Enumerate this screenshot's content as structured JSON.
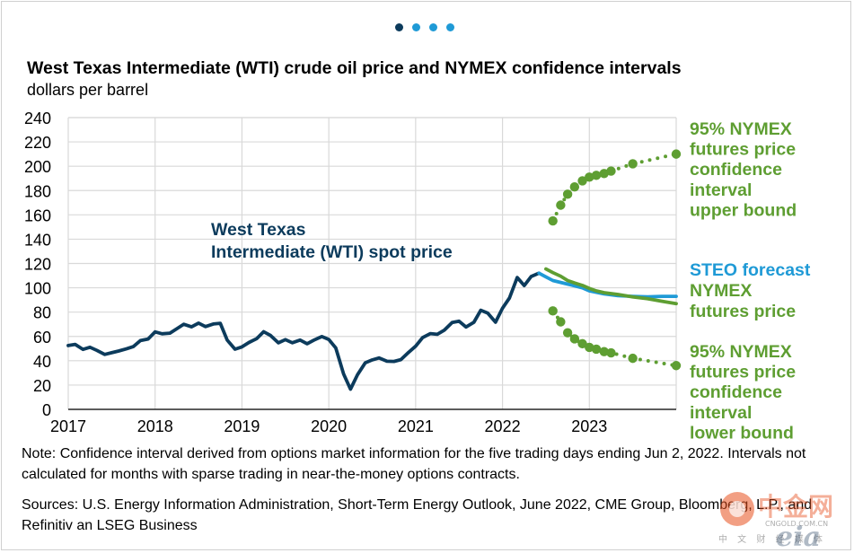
{
  "header": {
    "title": "West Texas Intermediate (WTI) crude oil price and NYMEX confidence intervals",
    "subtitle": "dollars per barrel",
    "dot_colors": [
      "#0c3b5c",
      "#1f9ad6",
      "#1f9ad6",
      "#1f9ad6"
    ]
  },
  "colors": {
    "wti": "#0c3b5c",
    "steo": "#1f9ad6",
    "nymex": "#5e9e32",
    "grid": "#d9d9d9"
  },
  "chart_data": {
    "type": "line",
    "title": "West Texas Intermediate (WTI) crude oil price and NYMEX confidence intervals",
    "ylabel": "dollars per barrel",
    "xlabel": "",
    "x_range": [
      2017.0,
      2024.0
    ],
    "ylim": [
      0,
      240
    ],
    "y_ticks": [
      0,
      20,
      40,
      60,
      80,
      100,
      120,
      140,
      160,
      180,
      200,
      220,
      240
    ],
    "x_ticks": [
      2017,
      2018,
      2019,
      2020,
      2021,
      2022,
      2023
    ],
    "x_tick_labels": [
      "2017",
      "2018",
      "2019",
      "2020",
      "2021",
      "2022",
      "2023"
    ],
    "grid": true,
    "series": [
      {
        "name": "West Texas Intermediate (WTI) spot price",
        "style": "line",
        "points": [
          [
            2017.0,
            52.5
          ],
          [
            2017.08,
            53.5
          ],
          [
            2017.17,
            49.3
          ],
          [
            2017.25,
            51.1
          ],
          [
            2017.33,
            48.5
          ],
          [
            2017.42,
            45.2
          ],
          [
            2017.5,
            46.6
          ],
          [
            2017.58,
            48.0
          ],
          [
            2017.67,
            49.8
          ],
          [
            2017.75,
            51.6
          ],
          [
            2017.83,
            56.6
          ],
          [
            2017.92,
            57.9
          ],
          [
            2018.0,
            63.7
          ],
          [
            2018.08,
            62.2
          ],
          [
            2018.17,
            62.7
          ],
          [
            2018.25,
            66.3
          ],
          [
            2018.33,
            70.0
          ],
          [
            2018.42,
            67.9
          ],
          [
            2018.5,
            71.0
          ],
          [
            2018.58,
            68.1
          ],
          [
            2018.67,
            70.2
          ],
          [
            2018.75,
            70.8
          ],
          [
            2018.83,
            57.0
          ],
          [
            2018.92,
            49.5
          ],
          [
            2019.0,
            51.4
          ],
          [
            2019.08,
            55.0
          ],
          [
            2019.17,
            58.2
          ],
          [
            2019.25,
            63.9
          ],
          [
            2019.33,
            60.8
          ],
          [
            2019.42,
            54.7
          ],
          [
            2019.5,
            57.4
          ],
          [
            2019.58,
            54.8
          ],
          [
            2019.67,
            57.0
          ],
          [
            2019.75,
            54.0
          ],
          [
            2019.83,
            57.0
          ],
          [
            2019.92,
            59.9
          ],
          [
            2020.0,
            57.5
          ],
          [
            2020.08,
            50.5
          ],
          [
            2020.17,
            29.2
          ],
          [
            2020.25,
            16.6
          ],
          [
            2020.33,
            28.5
          ],
          [
            2020.42,
            38.3
          ],
          [
            2020.5,
            40.7
          ],
          [
            2020.58,
            42.3
          ],
          [
            2020.67,
            39.6
          ],
          [
            2020.75,
            39.4
          ],
          [
            2020.83,
            40.9
          ],
          [
            2020.92,
            47.0
          ],
          [
            2021.0,
            52.0
          ],
          [
            2021.08,
            59.0
          ],
          [
            2021.17,
            62.3
          ],
          [
            2021.25,
            61.7
          ],
          [
            2021.33,
            65.2
          ],
          [
            2021.42,
            71.4
          ],
          [
            2021.5,
            72.5
          ],
          [
            2021.58,
            67.7
          ],
          [
            2021.67,
            71.6
          ],
          [
            2021.75,
            81.5
          ],
          [
            2021.83,
            79.2
          ],
          [
            2021.92,
            71.7
          ],
          [
            2022.0,
            83.2
          ],
          [
            2022.08,
            91.6
          ],
          [
            2022.17,
            108.5
          ],
          [
            2022.25,
            101.8
          ],
          [
            2022.33,
            109.3
          ],
          [
            2022.42,
            112.0
          ]
        ]
      },
      {
        "name": "STEO forecast",
        "style": "line",
        "points": [
          [
            2022.42,
            112.0
          ],
          [
            2022.5,
            109.0
          ],
          [
            2022.58,
            106.0
          ],
          [
            2022.75,
            103.0
          ],
          [
            2022.92,
            100.0
          ],
          [
            2023.0,
            97.5
          ],
          [
            2023.17,
            95.0
          ],
          [
            2023.33,
            93.5
          ],
          [
            2023.5,
            93.0
          ],
          [
            2023.67,
            92.5
          ],
          [
            2023.83,
            93.0
          ],
          [
            2024.0,
            93.0
          ]
        ]
      },
      {
        "name": "NYMEX futures price",
        "style": "line",
        "points": [
          [
            2022.5,
            115.5
          ],
          [
            2022.58,
            112.5
          ],
          [
            2022.67,
            109.5
          ],
          [
            2022.75,
            106.0
          ],
          [
            2022.83,
            104.0
          ],
          [
            2022.92,
            102.0
          ],
          [
            2023.0,
            99.5
          ],
          [
            2023.08,
            97.5
          ],
          [
            2023.17,
            96.0
          ],
          [
            2023.33,
            94.5
          ],
          [
            2023.5,
            92.5
          ],
          [
            2023.67,
            91.0
          ],
          [
            2023.83,
            89.0
          ],
          [
            2024.0,
            87.0
          ]
        ]
      },
      {
        "name": "95% NYMEX futures price confidence interval upper bound",
        "style": "dots",
        "points": [
          [
            2022.58,
            155.0
          ],
          [
            2022.67,
            168.0
          ],
          [
            2022.75,
            177.0
          ],
          [
            2022.83,
            183.0
          ],
          [
            2022.92,
            188.0
          ],
          [
            2023.0,
            191.0
          ],
          [
            2023.08,
            192.5
          ],
          [
            2023.17,
            194.0
          ],
          [
            2023.25,
            196.0
          ],
          [
            2023.5,
            202.0
          ],
          [
            2024.0,
            210.0
          ]
        ]
      },
      {
        "name": "95% NYMEX futures price confidence interval lower bound",
        "style": "dots",
        "points": [
          [
            2022.58,
            81.0
          ],
          [
            2022.67,
            72.0
          ],
          [
            2022.75,
            63.0
          ],
          [
            2022.83,
            58.0
          ],
          [
            2022.92,
            54.0
          ],
          [
            2023.0,
            51.0
          ],
          [
            2023.08,
            49.5
          ],
          [
            2023.17,
            47.5
          ],
          [
            2023.25,
            46.5
          ],
          [
            2023.5,
            42.0
          ],
          [
            2024.0,
            36.0
          ]
        ]
      }
    ],
    "annotations": {
      "wti_label": [
        "West Texas",
        "Intermediate (WTI) spot price"
      ],
      "upper_label": [
        "95% NYMEX",
        "futures price",
        "confidence",
        "interval",
        "upper bound"
      ],
      "steo_label": "STEO forecast",
      "nymex_label": [
        "NYMEX",
        "futures price"
      ],
      "lower_label": [
        "95% NYMEX",
        "futures price",
        "confidence",
        "interval",
        "lower bound"
      ]
    }
  },
  "footer": {
    "note": "Note: Confidence interval derived from options market information for the five trading days ending Jun 2, 2022. Intervals not calculated for months with sparse trading in near-the-money options contracts.",
    "sources": "Sources: U.S. Energy Information Administration, Short-Term Energy Outlook, June 2022, CME Group, Bloomberg, L.P., and Refinitiv an LSEG Business"
  },
  "watermark": {
    "brand_cn": "中金网",
    "url": "CNGOLD.COM.CN",
    "tagline": "中 文 财 经 媒 体",
    "logo": "eia"
  }
}
